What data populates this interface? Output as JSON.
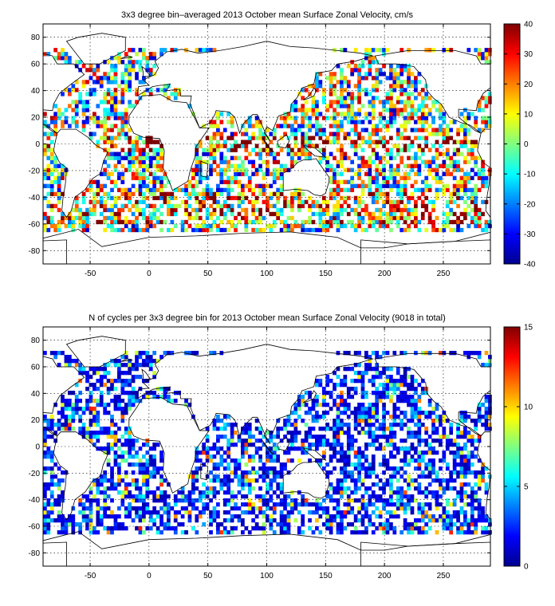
{
  "chart_data": [
    {
      "type": "heatmap",
      "title": "3x3 degree bin–averaged 2013 October mean Surface Zonal Velocity, cm/s",
      "x_ticks": [
        -50,
        0,
        50,
        100,
        150,
        200,
        250
      ],
      "y_ticks": [
        80,
        60,
        40,
        20,
        0,
        -20,
        -40,
        -60,
        -80
      ],
      "xlim": [
        -90,
        290
      ],
      "ylim": [
        -90,
        90
      ],
      "grid": true,
      "colorbar": {
        "min": -40,
        "max": 40,
        "ticks": [
          40,
          30,
          20,
          10,
          0,
          -10,
          -20,
          -30,
          -40
        ]
      },
      "colormap": "jet",
      "bin_size_deg": 3,
      "value_range": [
        -40,
        40
      ]
    },
    {
      "type": "heatmap",
      "title": "N of cycles per 3x3 degree bin for 2013 October mean Surface Zonal Velocity (9018 in total)",
      "x_ticks": [
        -50,
        0,
        50,
        100,
        150,
        200,
        250
      ],
      "y_ticks": [
        80,
        60,
        40,
        20,
        0,
        -20,
        -40,
        -60,
        -80
      ],
      "xlim": [
        -90,
        290
      ],
      "ylim": [
        -90,
        90
      ],
      "grid": true,
      "colorbar": {
        "min": 0,
        "max": 15,
        "ticks": [
          15,
          10,
          5,
          0
        ]
      },
      "colormap": "jet",
      "bin_size_deg": 3,
      "total_cycles": 9018,
      "value_range": [
        0,
        15
      ]
    }
  ]
}
